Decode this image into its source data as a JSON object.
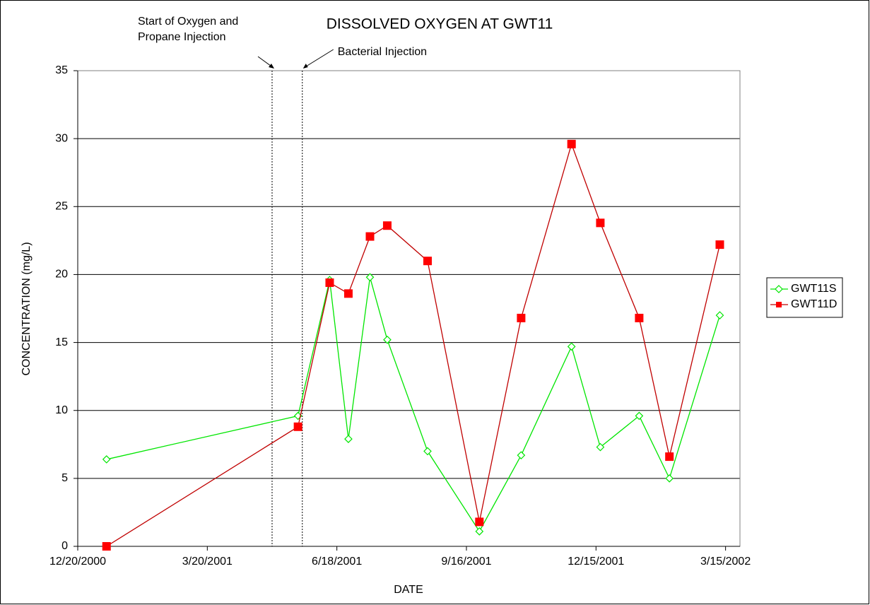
{
  "chart_data": {
    "type": "line",
    "title": "DISSOLVED OXYGEN AT GWT11",
    "x_label": "DATE",
    "y_label": "CONCENTRATION (mg/L)",
    "x": [
      "2001-01-09",
      "2001-05-22",
      "2001-06-13",
      "2001-06-26",
      "2001-07-11",
      "2001-07-23",
      "2001-08-20",
      "2001-09-25",
      "2001-10-24",
      "2001-11-28",
      "2001-12-18",
      "2002-01-14",
      "2002-02-04",
      "2002-03-11"
    ],
    "series": [
      {
        "name": "GWT11S",
        "color": "#00e600",
        "marker": "diamond",
        "values": [
          6.4,
          9.6,
          19.6,
          7.9,
          19.8,
          15.2,
          7.0,
          1.1,
          6.7,
          14.7,
          7.3,
          9.6,
          5.0,
          17.0
        ]
      },
      {
        "name": "GWT11D",
        "color": "#c00000",
        "marker_color": "#ff0000",
        "marker": "square",
        "values": [
          0,
          8.8,
          19.4,
          18.6,
          22.8,
          23.6,
          21.0,
          1.8,
          16.8,
          29.6,
          23.8,
          16.8,
          6.6,
          22.2
        ]
      }
    ],
    "xlim": [
      "2000-12-20",
      "2002-03-25"
    ],
    "xticks": [
      {
        "value": "2000-12-20",
        "label": "12/20/2000"
      },
      {
        "value": "2001-03-20",
        "label": "3/20/2001"
      },
      {
        "value": "2001-06-18",
        "label": "6/18/2001"
      },
      {
        "value": "2001-09-16",
        "label": "9/16/2001"
      },
      {
        "value": "2001-12-15",
        "label": "12/15/2001"
      },
      {
        "value": "2002-03-15",
        "label": "3/15/2002"
      }
    ],
    "ylim": [
      0,
      35
    ],
    "yticks": [
      0,
      5,
      10,
      15,
      20,
      25,
      30,
      35
    ],
    "grid": true,
    "legend": "right",
    "annotations": [
      {
        "x": "2001-05-04",
        "lines": [
          "Start of Oxygen and",
          "Propane Injection"
        ]
      },
      {
        "x": "2001-05-25",
        "lines": [
          "Bacterial Injection"
        ]
      }
    ]
  }
}
